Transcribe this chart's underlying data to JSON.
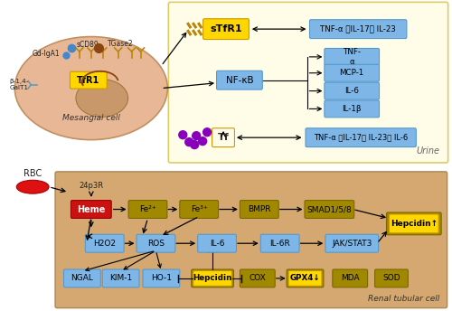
{
  "fig_width": 5.0,
  "fig_height": 3.44,
  "dpi": 100,
  "upper_bg_color": "#FFFDE7",
  "lower_bg_color": "#D4A870",
  "yellow_box": "#FFD700",
  "blue_box": "#7EB6E8",
  "dark_yellow_box": "#A08800",
  "red_box": "#CC1111",
  "urine_label": "Urine",
  "renal_label": "Renal tubular cell",
  "mesangial_label": "Mesangial cell",
  "rbc_label": "RBC",
  "label_24p3r": "24p3R",
  "stfr1_text": "sTfR1",
  "tfr1_text": "TfR1",
  "nfkb_text": "NF-κB",
  "tf_text": "Tf",
  "heme_text": "Heme",
  "hepcidin_text": "Hepcidin",
  "tnf_il17_il23": "TNF-α 、IL-17、 IL-23",
  "tnf_il17_il23_il6": "TNF-α 、IL-17、 IL-23、 IL-6",
  "nfkb_outputs": [
    "TNF-\nα",
    "MCP-1",
    "IL-6",
    "IL-1β"
  ],
  "row1_labels": [
    "Fe²⁺",
    "Fe³⁺",
    "BMPR",
    "SMAD1/5/8"
  ],
  "row2_labels": [
    "H2O2",
    "ROS",
    "IL-6",
    "IL-6R",
    "JAK/STAT3"
  ],
  "row3_blue": [
    "NGAL",
    "KIM-1",
    "HO-1"
  ],
  "row3_dark": [
    "COX",
    "MDA",
    "SOD"
  ],
  "row3_highlight": [
    "Hepcidin",
    "GPX4↓"
  ]
}
